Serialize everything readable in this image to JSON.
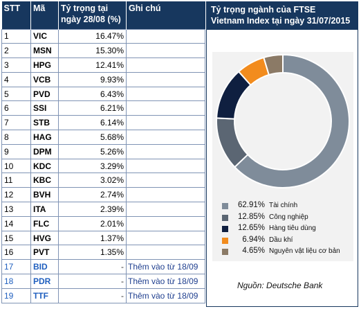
{
  "table": {
    "headers": [
      "STT",
      "Mã",
      "Tỷ trọng tại ngày 28/08 (%)",
      "Ghi chú"
    ],
    "rows": [
      {
        "stt": "1",
        "code": "VIC",
        "weight": "16.47%",
        "note": ""
      },
      {
        "stt": "2",
        "code": "MSN",
        "weight": "15.30%",
        "note": ""
      },
      {
        "stt": "3",
        "code": "HPG",
        "weight": "12.41%",
        "note": ""
      },
      {
        "stt": "4",
        "code": "VCB",
        "weight": "9.93%",
        "note": ""
      },
      {
        "stt": "5",
        "code": "PVD",
        "weight": "6.43%",
        "note": ""
      },
      {
        "stt": "6",
        "code": "SSI",
        "weight": "6.21%",
        "note": ""
      },
      {
        "stt": "7",
        "code": "STB",
        "weight": "6.14%",
        "note": ""
      },
      {
        "stt": "8",
        "code": "HAG",
        "weight": "5.68%",
        "note": ""
      },
      {
        "stt": "9",
        "code": "DPM",
        "weight": "5.26%",
        "note": ""
      },
      {
        "stt": "10",
        "code": "KDC",
        "weight": "3.29%",
        "note": ""
      },
      {
        "stt": "11",
        "code": "KBC",
        "weight": "3.02%",
        "note": ""
      },
      {
        "stt": "12",
        "code": "BVH",
        "weight": "2.74%",
        "note": ""
      },
      {
        "stt": "13",
        "code": "ITA",
        "weight": "2.39%",
        "note": ""
      },
      {
        "stt": "14",
        "code": "FLC",
        "weight": "2.01%",
        "note": ""
      },
      {
        "stt": "15",
        "code": "HVG",
        "weight": "1.37%",
        "note": ""
      },
      {
        "stt": "16",
        "code": "PVT",
        "weight": "1.35%",
        "note": ""
      },
      {
        "stt": "17",
        "code": "BID",
        "weight": "-",
        "note": "Thêm vào từ 18/09",
        "added": true
      },
      {
        "stt": "18",
        "code": "PDR",
        "weight": "-",
        "note": "Thêm vào từ 18/09",
        "added": true
      },
      {
        "stt": "19",
        "code": "TTF",
        "weight": "-",
        "note": "Thêm vào từ 18/09",
        "added": true
      }
    ]
  },
  "panel": {
    "title_line1": "Tỷ trọng ngành của FTSE",
    "title_line2": "Vietnam Index tại ngày 31/07/2015",
    "source": "Nguồn: Deutsche Bank"
  },
  "colors": {
    "header_bg": "#17375e",
    "added_row_text": "#1f5fbf"
  },
  "chart_data": {
    "type": "pie",
    "donut": true,
    "title": "Tỷ trọng ngành của FTSE Vietnam Index tại ngày 31/07/2015",
    "legend_position": "bottom",
    "slices": [
      {
        "label": "Tài chính",
        "value": 62.91,
        "display": "62.91%",
        "color": "#7f8c9a"
      },
      {
        "label": "Công nghiệp",
        "value": 12.85,
        "display": "12.85%",
        "color": "#5b6673"
      },
      {
        "label": "Hàng tiêu dùng",
        "value": 12.65,
        "display": "12.65%",
        "color": "#0f1f40"
      },
      {
        "label": "Dầu khí",
        "value": 6.94,
        "display": "6.94%",
        "color": "#f28c1e"
      },
      {
        "label": "Nguyên vật liệu cơ bản",
        "value": 4.65,
        "display": "4.65%",
        "color": "#8b7a66"
      }
    ]
  }
}
